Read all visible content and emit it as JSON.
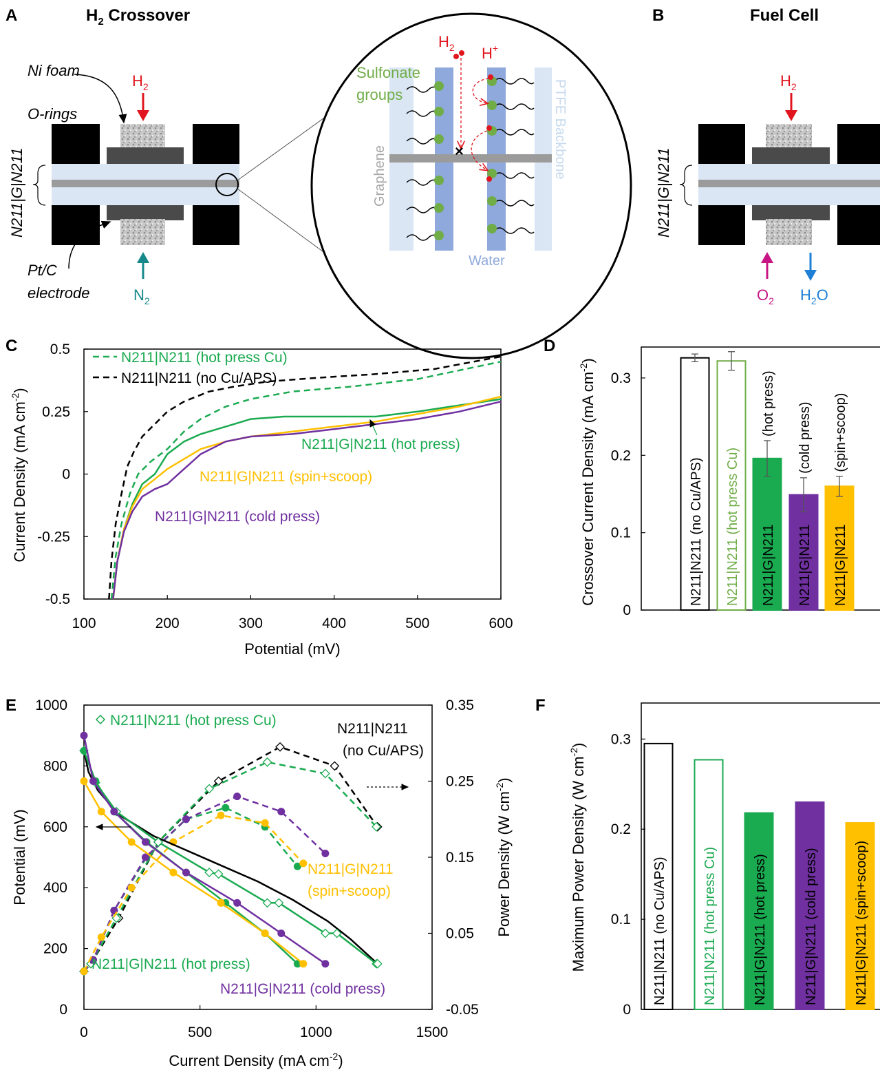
{
  "panelA": {
    "letter": "A",
    "title": "H",
    "title_sub": "2",
    "title_rest": " Crossover",
    "ni_foam": "Ni foam",
    "o_rings": "O-rings",
    "side_label": "N211|G|N211",
    "pt_c": "Pt/C",
    "electrode": "electrode",
    "h2": "H",
    "h2_sub": "2",
    "n2": "N",
    "n2_sub": "2"
  },
  "zoom": {
    "h2": "H",
    "h2_sub": "2",
    "hplus": "H",
    "hplus_sup": "+",
    "sulfonate1": "Sulfonate",
    "sulfonate2": "groups",
    "graphene": "Graphene",
    "backbone": "PTFE Backbone",
    "water": "Water"
  },
  "panelB": {
    "letter": "B",
    "title": "Fuel Cell",
    "side_label": "N211|G|N211",
    "h2": "H",
    "h2_sub": "2",
    "o2": "O",
    "o2_sub": "2",
    "h2o_a": "H",
    "h2o_sub": "2",
    "h2o_b": "O"
  },
  "colors": {
    "green": "#1aaa50",
    "purple": "#7030a0",
    "yellow": "#ffc000",
    "black": "#000000",
    "lightgreen": "#70ad47",
    "red": "#e0151d",
    "teal": "#16888a",
    "magenta": "#c71585",
    "blue": "#1f7fd4"
  },
  "chart_data": [
    {
      "panel": "C",
      "type": "line",
      "xlabel": "Potential (mV)",
      "ylabel": "Current Density (mA cm",
      "ylabel_sup": "-2",
      "ylabel_end": ")",
      "xlim": [
        100,
        600
      ],
      "ylim": [
        -0.5,
        0.5
      ],
      "xticks": [
        "100",
        "200",
        "300",
        "400",
        "500",
        "600"
      ],
      "yticks": [
        "-0.5",
        "-0.25",
        "0",
        "0.25",
        "0.5"
      ],
      "series": [
        {
          "name": "N211|N211 (no Cu/APS)",
          "style": "dashed",
          "color": "#000000",
          "x": [
            130,
            133,
            138,
            145,
            152,
            160,
            170,
            185,
            200,
            220,
            250,
            280,
            320,
            380,
            450,
            520,
            600
          ],
          "y": [
            -0.5,
            -0.35,
            -0.2,
            -0.08,
            0.03,
            0.09,
            0.15,
            0.2,
            0.25,
            0.29,
            0.33,
            0.35,
            0.37,
            0.385,
            0.4,
            0.42,
            0.47
          ]
        },
        {
          "name": "N211|N211 (hot press Cu)",
          "style": "dashed",
          "color": "#1aaa50",
          "x": [
            133,
            138,
            145,
            155,
            165,
            180,
            200,
            220,
            240,
            270,
            300,
            350,
            420,
            500,
            600
          ],
          "y": [
            -0.5,
            -0.33,
            -0.2,
            -0.08,
            0.0,
            0.05,
            0.1,
            0.17,
            0.22,
            0.27,
            0.3,
            0.33,
            0.35,
            0.38,
            0.45
          ]
        },
        {
          "name": "N211|G|N211 (hot press)",
          "style": "solid",
          "color": "#1aaa50",
          "x": [
            135,
            140,
            148,
            158,
            170,
            185,
            200,
            220,
            240,
            260,
            280,
            300,
            340,
            400,
            450,
            500,
            600
          ],
          "y": [
            -0.5,
            -0.35,
            -0.22,
            -0.12,
            -0.04,
            0.0,
            0.08,
            0.13,
            0.16,
            0.18,
            0.2,
            0.22,
            0.23,
            0.23,
            0.23,
            0.25,
            0.3
          ]
        },
        {
          "name": "N211|G|N211 (spin+scoop)",
          "style": "solid",
          "color": "#ffc000",
          "x": [
            135,
            140,
            148,
            158,
            170,
            185,
            200,
            220,
            240,
            270,
            300,
            350,
            400,
            450,
            500,
            550,
            600
          ],
          "y": [
            -0.5,
            -0.35,
            -0.22,
            -0.13,
            -0.06,
            -0.02,
            0.02,
            0.06,
            0.1,
            0.13,
            0.15,
            0.17,
            0.19,
            0.21,
            0.24,
            0.27,
            0.31
          ]
        },
        {
          "name": "N211|G|N211 (cold press)",
          "style": "solid",
          "color": "#7030a0",
          "x": [
            135,
            140,
            148,
            158,
            170,
            185,
            200,
            220,
            240,
            270,
            300,
            350,
            400,
            450,
            500,
            550,
            600
          ],
          "y": [
            -0.5,
            -0.35,
            -0.23,
            -0.15,
            -0.09,
            -0.06,
            -0.04,
            0.02,
            0.08,
            0.13,
            0.15,
            0.16,
            0.18,
            0.2,
            0.22,
            0.25,
            0.29
          ]
        }
      ],
      "legend": [
        "N211|N211 (hot press Cu)",
        "N211|N211 (no Cu/APS)"
      ],
      "annotations": [
        "N211|G|N211 (hot press)",
        "N211|G|N211 (spin+scoop)",
        "N211|G|N211 (cold press)"
      ]
    },
    {
      "panel": "D",
      "type": "bar",
      "ylabel": "Crossover Current Density (mA cm",
      "ylabel_sup": "-2",
      "ylabel_end": ")",
      "ylim": [
        0,
        0.34
      ],
      "yticks": [
        "0",
        "0.1",
        "0.2",
        "0.3"
      ],
      "categories": [
        "N211|N211 (no Cu/APS)",
        "N211|N211 (hot press Cu)",
        "N211|G|N211",
        "N211|G|N211",
        "N211|G|N211"
      ],
      "values": [
        0.326,
        0.322,
        0.196,
        0.149,
        0.16
      ],
      "errors": [
        0.005,
        0.012,
        0.023,
        0.022,
        0.013
      ],
      "outside_labels": [
        "",
        "",
        "(hot press)",
        "(cold press)",
        "(spin+scoop)"
      ],
      "fills": [
        "none",
        "none",
        "#1aaa50",
        "#7030a0",
        "#ffc000"
      ],
      "strokes": [
        "#000000",
        "#70ad47",
        "#1aaa50",
        "#7030a0",
        "#ffc000"
      ]
    },
    {
      "panel": "E",
      "type": "line",
      "xlabel": "Current Density (mA cm",
      "xlabel_sup": "-2",
      "xlabel_end": ")",
      "ylabel": "Potential (mV)",
      "y2label": "Power Density (W cm",
      "y2label_sup": "-2",
      "y2label_end": ")",
      "xlim": [
        0,
        1500
      ],
      "ylim": [
        0,
        1000
      ],
      "y2lim": [
        -0.05,
        0.35
      ],
      "xticks": [
        "0",
        "500",
        "1000",
        "1500"
      ],
      "yticks": [
        "0",
        "200",
        "400",
        "600",
        "800",
        "1000"
      ],
      "y2ticks": [
        "-0.05",
        "0.05",
        "0.15",
        "0.25",
        "0.35"
      ],
      "polarization": [
        {
          "name": "N211|N211 (no Cu/APS)",
          "color": "#000000",
          "marker": "none",
          "x": [
            0,
            20,
            60,
            150,
            300,
            450,
            600,
            750,
            900,
            1050,
            1150,
            1265
          ],
          "y": [
            850,
            780,
            720,
            640,
            570,
            520,
            470,
            420,
            360,
            290,
            230,
            150
          ]
        },
        {
          "name": "N211|N211 (hot press Cu)",
          "color": "#1aaa50",
          "marker": "diamond",
          "x": [
            0,
            50,
            140,
            320,
            540,
            580,
            790,
            840,
            1040,
            1090,
            1260,
            1265
          ],
          "y": [
            850,
            745,
            650,
            550,
            450,
            445,
            350,
            350,
            250,
            250,
            150,
            150
          ]
        },
        {
          "name": "N211|G|N211 (hot press)",
          "color": "#1aaa50",
          "marker": "dot",
          "x": [
            0,
            50,
            130,
            270,
            440,
            610,
            780,
            920
          ],
          "y": [
            850,
            750,
            650,
            550,
            450,
            350,
            250,
            150
          ]
        },
        {
          "name": "N211|G|N211 (cold press)",
          "color": "#7030a0",
          "marker": "dot",
          "x": [
            0,
            40,
            130,
            265,
            440,
            660,
            850,
            1040
          ],
          "y": [
            900,
            750,
            650,
            550,
            450,
            350,
            250,
            150
          ]
        },
        {
          "name": "N211|G|N211 (spin+scoop)",
          "color": "#ffc000",
          "marker": "dot",
          "x": [
            0,
            75,
            205,
            385,
            590,
            780,
            945
          ],
          "y": [
            750,
            650,
            550,
            450,
            350,
            250,
            150
          ]
        }
      ],
      "power": [
        {
          "name": "N211|N211 (no Cu/APS)",
          "color": "#000000",
          "marker": "diamond",
          "x": [
            0,
            30,
            150,
            320,
            580,
            845,
            1080,
            1265
          ],
          "y": [
            0,
            0.01,
            0.07,
            0.17,
            0.25,
            0.295,
            0.27,
            0.19
          ]
        },
        {
          "name": "N211|N211 (hot press Cu)",
          "color": "#1aaa50",
          "marker": "diamond",
          "x": [
            0,
            30,
            140,
            320,
            540,
            790,
            1040,
            1260
          ],
          "y": [
            0,
            0.01,
            0.07,
            0.17,
            0.24,
            0.275,
            0.26,
            0.19
          ]
        },
        {
          "name": "N211|G|N211 (hot press)",
          "color": "#1aaa50",
          "marker": "dot",
          "x": [
            0,
            40,
            130,
            270,
            440,
            610,
            780,
            920
          ],
          "y": [
            0,
            0.015,
            0.08,
            0.15,
            0.2,
            0.215,
            0.19,
            0.138
          ]
        },
        {
          "name": "N211|G|N211 (cold press)",
          "color": "#7030a0",
          "marker": "dot",
          "x": [
            0,
            40,
            130,
            265,
            440,
            660,
            850,
            1040
          ],
          "y": [
            0,
            0.015,
            0.08,
            0.15,
            0.2,
            0.23,
            0.21,
            0.155
          ]
        },
        {
          "name": "N211|G|N211 (spin+scoop)",
          "color": "#ffc000",
          "marker": "dot",
          "x": [
            0,
            75,
            205,
            385,
            590,
            780,
            945
          ],
          "y": [
            0,
            0.045,
            0.11,
            0.17,
            0.205,
            0.195,
            0.142
          ]
        }
      ],
      "labels": {
        "legend": "N211|N211 (hot press Cu)",
        "noCu1": "N211|N211",
        "noCu2": "(no Cu/APS)",
        "spin1": "N211|G|N211",
        "spin2": "(spin+scoop)",
        "hot": "N211|G|N211 (hot press)",
        "cold": "N211|G|N211 (cold press)"
      }
    },
    {
      "panel": "F",
      "type": "bar",
      "ylabel": "Maximum Power Density (W cm",
      "ylabel_sup": "-2",
      "ylabel_end": ")",
      "ylim": [
        0,
        0.34
      ],
      "yticks": [
        "0",
        "0.1",
        "0.2",
        "0.3"
      ],
      "categories": [
        "N211|N211 (no Cu/APS)",
        "N211|N211 (hot press Cu)",
        "N211|G|N211 (hot press)",
        "N211|G|N211 (cold press)",
        "N211|G|N211 (spin+scoop)"
      ],
      "values": [
        0.295,
        0.277,
        0.218,
        0.23,
        0.207
      ],
      "fills": [
        "none",
        "none",
        "#1aaa50",
        "#7030a0",
        "#ffc000"
      ],
      "strokes": [
        "#000000",
        "#1aaa50",
        "#1aaa50",
        "#7030a0",
        "#ffc000"
      ]
    }
  ]
}
